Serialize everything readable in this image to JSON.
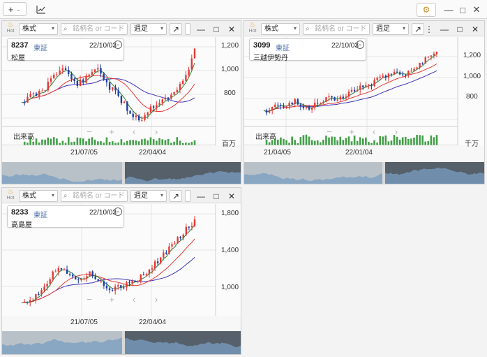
{
  "toolbar": {
    "add_label": "+",
    "add_caret": "⌄",
    "chart_icon": "chart-line-icon",
    "settings_icon": "gear-icon",
    "minimize": "—",
    "maximize": "□",
    "close": "✕"
  },
  "windows": [
    {
      "hot": "Hot",
      "type_select": "株式",
      "search_placeholder": "銘柄名 or コード",
      "period_select": "週足",
      "code": "8237",
      "exchange": "東証",
      "date": "22/10/03",
      "name": "松屋",
      "y_ticks": [
        "1,200",
        "1,000",
        "800"
      ],
      "x_ticks": [
        "21/07/05",
        "22/04/04"
      ],
      "volume_label": "出来高",
      "volume_unit": "百万"
    },
    {
      "hot": "Hot",
      "type_select": "株式",
      "search_placeholder": "銘柄名 or コード",
      "period_select": "週足",
      "code": "3099",
      "exchange": "東証",
      "date": "22/10/03",
      "name": "三越伊勢丹",
      "y_ticks": [
        "1,200",
        "1,000",
        "800"
      ],
      "x_ticks": [
        "21/04/05",
        "22/01/04"
      ],
      "volume_label": "出来高",
      "volume_unit": "千万"
    },
    {
      "hot": "Hot",
      "type_select": "株式",
      "search_placeholder": "銘柄名 or コード",
      "period_select": "週足",
      "code": "8233",
      "exchange": "東証",
      "date": "22/10/03",
      "name": "高島屋",
      "y_ticks": [
        "1,800",
        "1,400",
        "1,000"
      ],
      "x_ticks": [
        "21/07/05",
        "22/04/04"
      ],
      "volume_label": "",
      "volume_unit": ""
    }
  ],
  "nav": {
    "zoom_out": "−",
    "zoom_in": "+",
    "prev": "‹",
    "next": "›"
  },
  "colors": {
    "up": "#e53935",
    "down": "#1a3fa8",
    "ma_short": "#2e7d32",
    "ma_mid": "#e53935",
    "ma_long": "#3f33b8",
    "volume": "#43a047"
  }
}
